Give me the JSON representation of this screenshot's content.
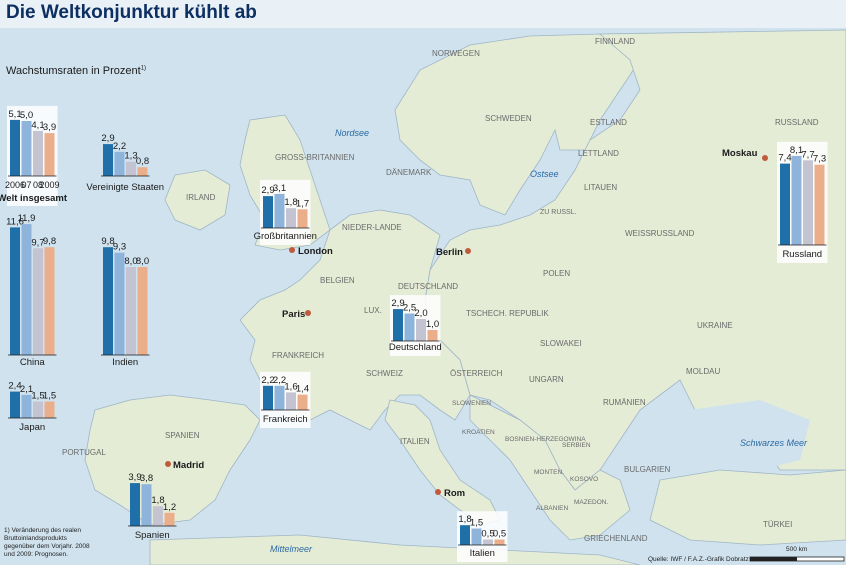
{
  "title": "Die Weltkonjunktur kühlt ab",
  "subtitle": "Wachstumsraten in Prozent",
  "subtitle_note": "1)",
  "footnote": "1) Veränderung des realen Bruttoinlandsprodukts gegenüber dem Vorjahr. 2008 und 2009: Prognosen.",
  "source": "Quelle: IWF / F.A.Z.-Grafik Dobratz",
  "scale_label": "500 km",
  "colors": {
    "y2006": "#1f6fa8",
    "y2007": "#8fb4dc",
    "y2008": "#c3c3d2",
    "y2009": "#eaae8a",
    "sea": "#cfe2ee",
    "land": "#e5ecd6"
  },
  "map_labels": {
    "countries": [
      "NORWEGEN",
      "FINNLAND",
      "SCHWEDEN",
      "ESTLAND",
      "RUSSLAND",
      "LETTLAND",
      "LITAUEN",
      "DÄNEMARK",
      "GROSS-BRITANNIEN",
      "IRLAND",
      "NIEDER-LANDE",
      "BELGIEN",
      "LUX.",
      "DEUTSCHLAND",
      "POLEN",
      "TSCHECH. REPUBLIK",
      "SLOWAKEI",
      "UKRAINE",
      "WEISSRUSSLAND",
      "ZU RUSSL.",
      "FRANKREICH",
      "SCHWEIZ",
      "ÖSTERREICH",
      "UNGARN",
      "MOLDAU",
      "RUMÄNIEN",
      "SLOWENIEN",
      "KROATIEN",
      "BOSNIEN-HERZEGOWINA",
      "SERBIEN",
      "MONTEN.",
      "KOSOVO",
      "MAZEDON.",
      "ALBANIEN",
      "BULGARIEN",
      "GRIECHENLAND",
      "TÜRKEI",
      "ITALIEN",
      "SPANIEN",
      "PORTUGAL"
    ],
    "seas": [
      "Nordsee",
      "Ostsee",
      "Schwarzes Meer",
      "Mittelmeer"
    ],
    "cities": [
      "London",
      "Paris",
      "Berlin",
      "Moskau",
      "Madrid",
      "Rom"
    ]
  },
  "chart_data": [
    {
      "type": "bar",
      "name": "Welt insgesamt",
      "categories": [
        "2006",
        "07",
        "08",
        "2009"
      ],
      "values": [
        5.1,
        5.0,
        4.1,
        3.9
      ],
      "labels": [
        "5,1",
        "5,0",
        "4,1",
        "3,9"
      ]
    },
    {
      "type": "bar",
      "name": "Vereinigte Staaten",
      "categories": [
        "2006",
        "07",
        "08",
        "2009"
      ],
      "values": [
        2.9,
        2.2,
        1.3,
        0.8
      ],
      "labels": [
        "2,9",
        "2,2",
        "1,3",
        "0,8"
      ]
    },
    {
      "type": "bar",
      "name": "Großbritannien",
      "categories": [
        "2006",
        "07",
        "08",
        "2009"
      ],
      "values": [
        2.9,
        3.1,
        1.8,
        1.7
      ],
      "labels": [
        "2,9",
        "3,1",
        "1,8",
        "1,7"
      ]
    },
    {
      "type": "bar",
      "name": "Russland",
      "categories": [
        "2006",
        "07",
        "08",
        "2009"
      ],
      "values": [
        7.4,
        8.1,
        7.7,
        7.3
      ],
      "labels": [
        "7,4",
        "8,1",
        "7,7",
        "7,3"
      ]
    },
    {
      "type": "bar",
      "name": "China",
      "categories": [
        "2006",
        "07",
        "08",
        "2009"
      ],
      "values": [
        11.6,
        11.9,
        9.7,
        9.8
      ],
      "labels": [
        "11,6",
        "11,9",
        "9,7",
        "9,8"
      ]
    },
    {
      "type": "bar",
      "name": "Indien",
      "categories": [
        "2006",
        "07",
        "08",
        "2009"
      ],
      "values": [
        9.8,
        9.3,
        8.0,
        8.0
      ],
      "labels": [
        "9,8",
        "9,3",
        "8,0",
        "8,0"
      ]
    },
    {
      "type": "bar",
      "name": "Deutschland",
      "categories": [
        "2006",
        "07",
        "08",
        "2009"
      ],
      "values": [
        2.9,
        2.5,
        2.0,
        1.0
      ],
      "labels": [
        "2,9",
        "2,5",
        "2,0",
        "1,0"
      ]
    },
    {
      "type": "bar",
      "name": "Japan",
      "categories": [
        "2006",
        "07",
        "08",
        "2009"
      ],
      "values": [
        2.4,
        2.1,
        1.5,
        1.5
      ],
      "labels": [
        "2,4",
        "2,1",
        "1,5",
        "1,5"
      ]
    },
    {
      "type": "bar",
      "name": "Frankreich",
      "categories": [
        "2006",
        "07",
        "08",
        "2009"
      ],
      "values": [
        2.2,
        2.2,
        1.6,
        1.4
      ],
      "labels": [
        "2,2",
        "2,2",
        "1,6",
        "1,4"
      ]
    },
    {
      "type": "bar",
      "name": "Spanien",
      "categories": [
        "2006",
        "07",
        "08",
        "2009"
      ],
      "values": [
        3.9,
        3.8,
        1.8,
        1.2
      ],
      "labels": [
        "3,9",
        "3,8",
        "1,8",
        "1,2"
      ]
    },
    {
      "type": "bar",
      "name": "Italien",
      "categories": [
        "2006",
        "07",
        "08",
        "2009"
      ],
      "values": [
        1.8,
        1.5,
        0.5,
        0.5
      ],
      "labels": [
        "1,8",
        "1,5",
        "0,5",
        "0,5"
      ]
    }
  ]
}
